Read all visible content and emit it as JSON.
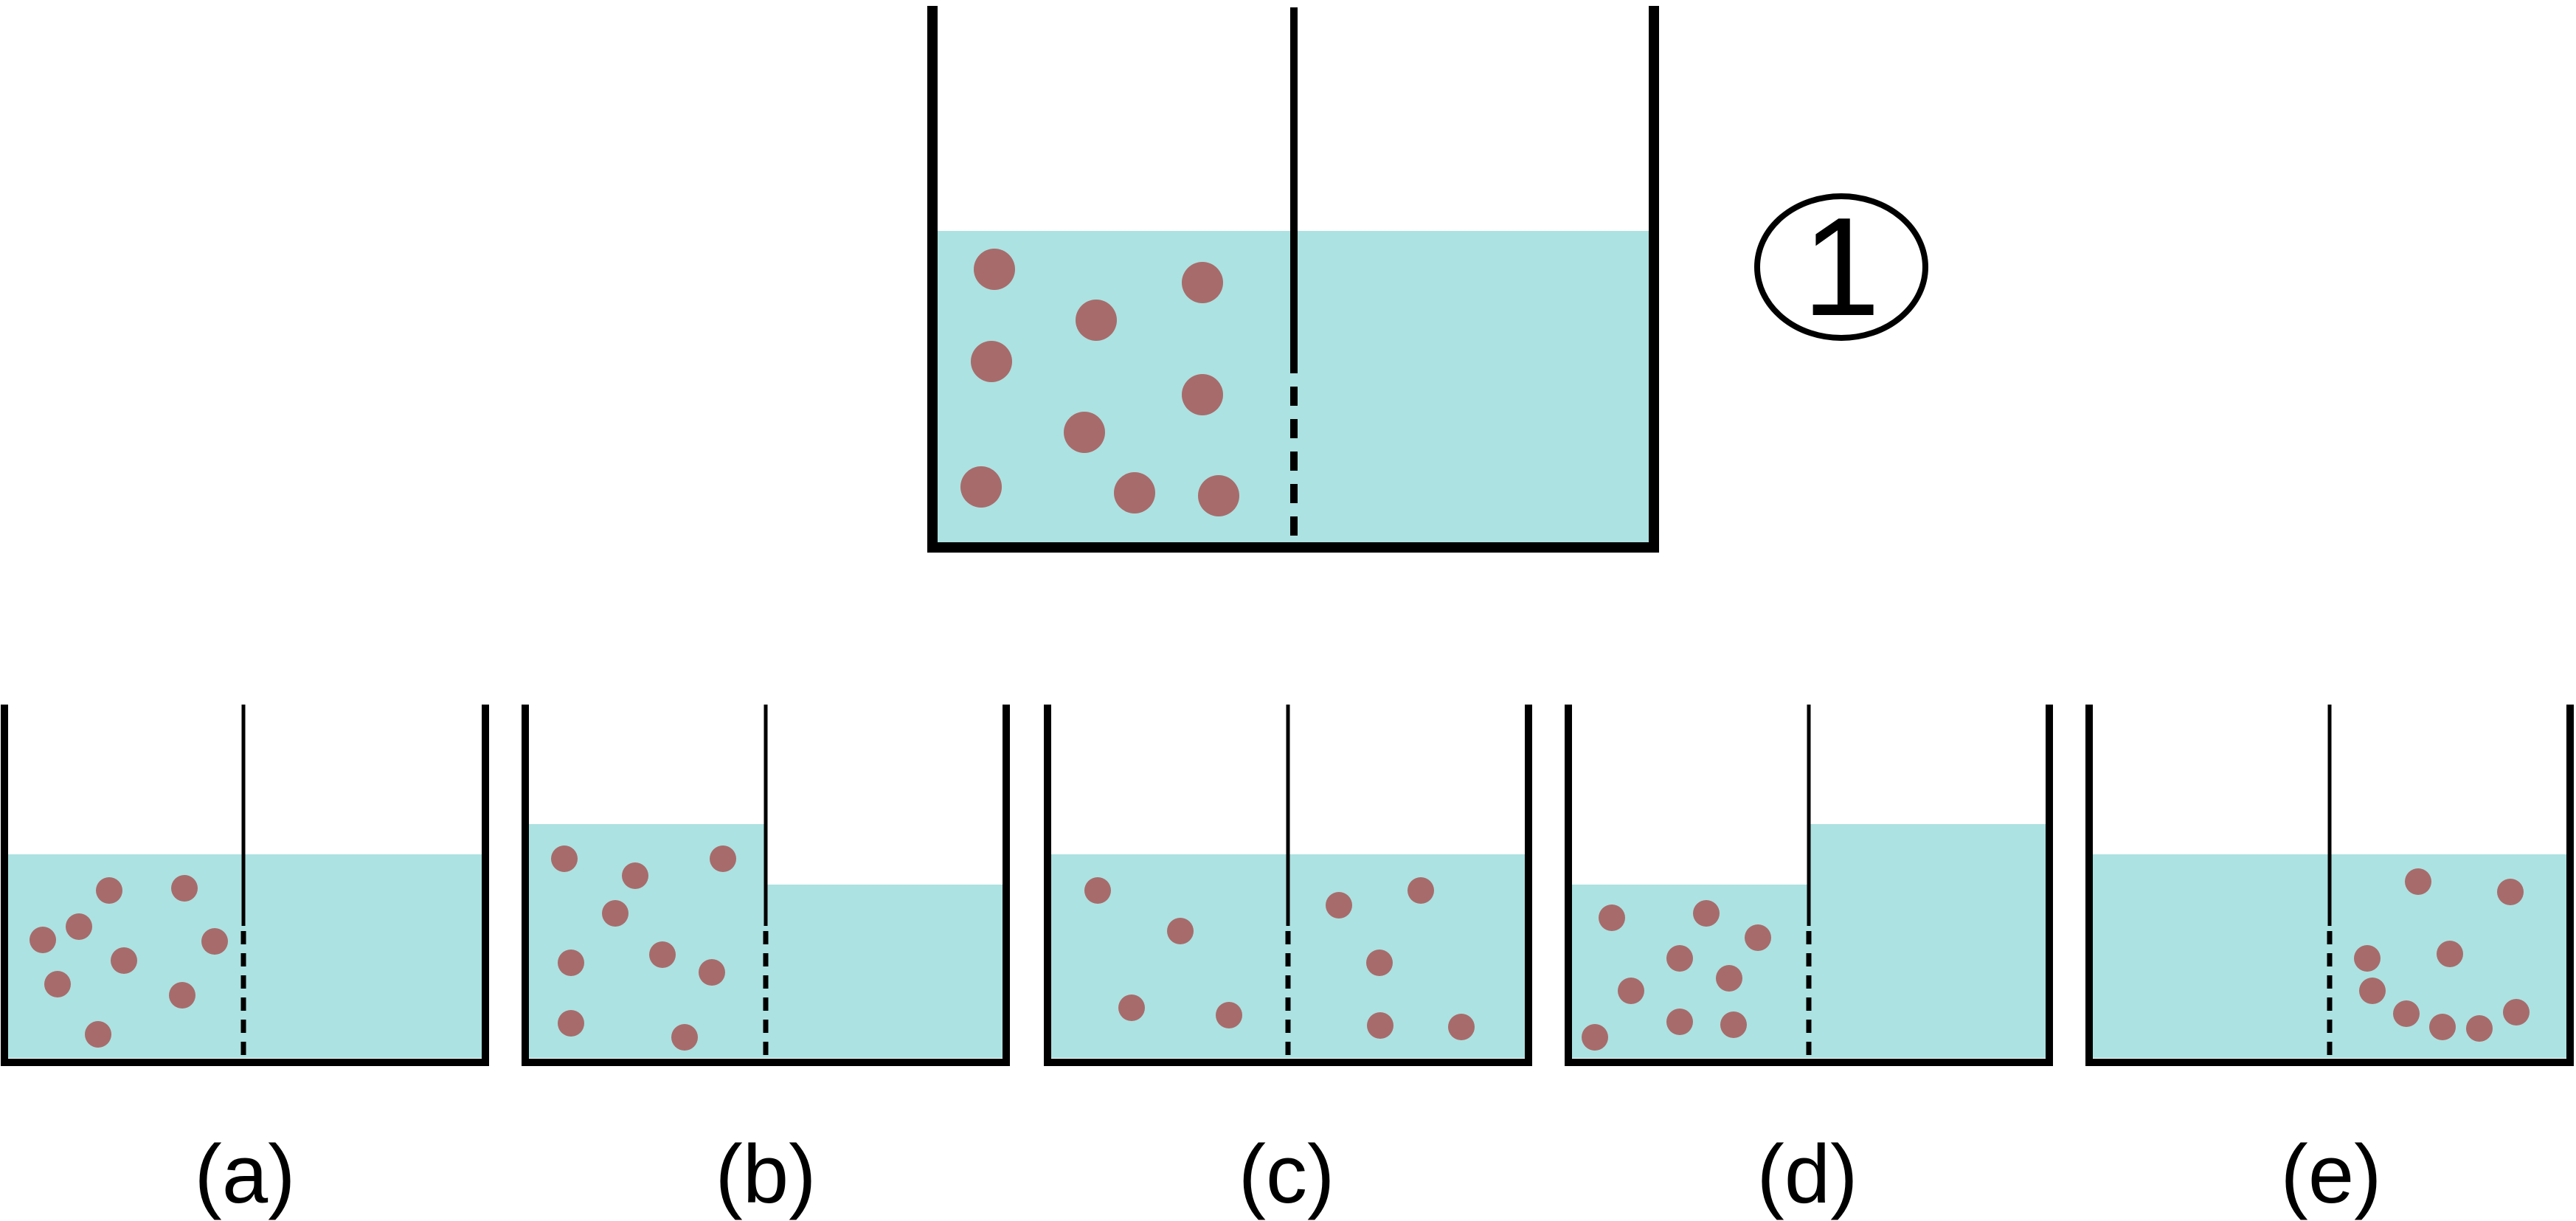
{
  "colors": {
    "liquid": "#ACE2E1",
    "particle": "#A86B6B",
    "stroke": "#000000"
  },
  "top_beaker": {
    "label": "1",
    "particle_count": 10,
    "left_level": 0.59,
    "right_level": 0.59
  },
  "options": [
    {
      "label": "(a)",
      "particle_side": "left",
      "particle_count": 10,
      "left_level": 0.58,
      "right_level": 0.58
    },
    {
      "label": "(b)",
      "particle_side": "left",
      "particle_count": 10,
      "left_level": 0.66,
      "right_level": 0.5
    },
    {
      "label": "(c)",
      "particle_side": "both",
      "particle_count": 10,
      "left_level": 0.58,
      "right_level": 0.58
    },
    {
      "label": "(d)",
      "particle_side": "left",
      "particle_count": 10,
      "left_level": 0.5,
      "right_level": 0.66
    },
    {
      "label": "(e)",
      "particle_side": "right",
      "particle_count": 10,
      "left_level": 0.58,
      "right_level": 0.58
    }
  ]
}
